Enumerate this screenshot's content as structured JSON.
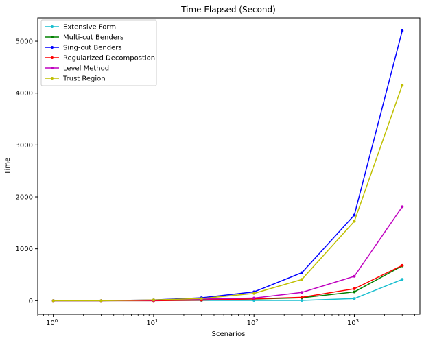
{
  "chart_data": {
    "type": "line",
    "title": "Time Elapsed (Second)",
    "xlabel": "Scenarios",
    "ylabel": "Time",
    "x_scale": "log",
    "x_range": [
      0.7,
      4500
    ],
    "y_range": [
      -260,
      5450
    ],
    "x_ticks": [
      {
        "value": 1,
        "base": "10",
        "exp": "0"
      },
      {
        "value": 10,
        "base": "10",
        "exp": "1"
      },
      {
        "value": 100,
        "base": "10",
        "exp": "2"
      },
      {
        "value": 1000,
        "base": "10",
        "exp": "3"
      }
    ],
    "y_ticks": [
      {
        "value": 0,
        "label": "0"
      },
      {
        "value": 1000,
        "label": "1000"
      },
      {
        "value": 2000,
        "label": "2000"
      },
      {
        "value": 3000,
        "label": "3000"
      },
      {
        "value": 4000,
        "label": "4000"
      },
      {
        "value": 5000,
        "label": "5000"
      }
    ],
    "grid": false,
    "legend_position": "top-left",
    "x": [
      1,
      3,
      10,
      30,
      100,
      300,
      1000,
      3000
    ],
    "series": [
      {
        "name": "Extensive Form",
        "color": "#17becf",
        "values": [
          0,
          0,
          0,
          5,
          5,
          5,
          40,
          410
        ]
      },
      {
        "name": "Multi-cut Benders",
        "color": "#008000",
        "values": [
          0,
          0,
          5,
          20,
          30,
          55,
          170,
          670
        ]
      },
      {
        "name": "Sing-cut Benders",
        "color": "#0000ff",
        "values": [
          0,
          0,
          15,
          55,
          170,
          540,
          1650,
          5200
        ]
      },
      {
        "name": "Regularized Decompostion",
        "color": "#ff0000",
        "values": [
          0,
          0,
          0,
          10,
          35,
          65,
          230,
          680
        ]
      },
      {
        "name": "Level Method",
        "color": "#bf00bf",
        "values": [
          0,
          0,
          10,
          30,
          50,
          160,
          470,
          1810
        ]
      },
      {
        "name": "Trust Region",
        "color": "#bfbf00",
        "values": [
          0,
          0,
          15,
          40,
          140,
          410,
          1530,
          4150
        ]
      }
    ]
  }
}
